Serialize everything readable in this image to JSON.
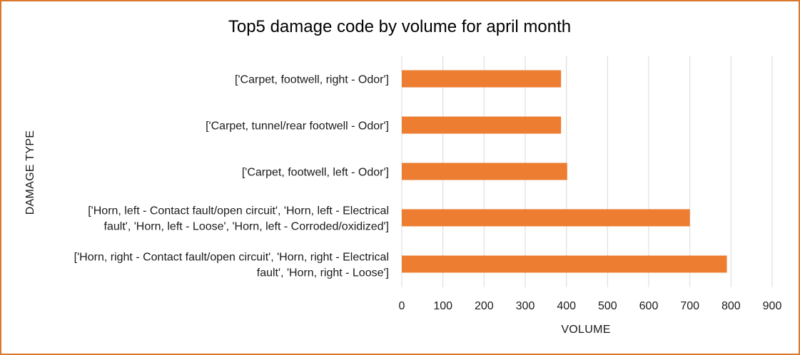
{
  "chart_data": {
    "type": "bar",
    "orientation": "horizontal",
    "title": "Top5 damage code by volume for april month",
    "xlabel": "VOLUME",
    "ylabel": "DAMAGE TYPE",
    "xlim": [
      0,
      900
    ],
    "xticks": [
      "0",
      "100",
      "200",
      "300",
      "400",
      "500",
      "600",
      "700",
      "800",
      "900"
    ],
    "grid": "vertical",
    "legend": "none",
    "bar_color": "#ed7d31",
    "grid_color": "#d9d9d9",
    "frame_color": "#d9792f",
    "categories": [
      [
        "['Carpet, footwell, right - Odor']"
      ],
      [
        "['Carpet, tunnel/rear footwell - Odor']"
      ],
      [
        "['Carpet, footwell, left - Odor']"
      ],
      [
        "['Horn, left - Contact fault/open circuit', 'Horn, left - Electrical",
        "fault', 'Horn, left - Loose', 'Horn, left - Corroded/oxidized']"
      ],
      [
        "['Horn, right - Contact fault/open circuit', 'Horn, right - Electrical",
        "fault', 'Horn, right - Loose']"
      ]
    ],
    "values": [
      387,
      387,
      402,
      700,
      790
    ]
  }
}
